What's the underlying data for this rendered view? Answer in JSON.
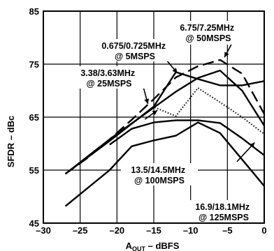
{
  "chart_data": {
    "type": "line",
    "title": "",
    "xlabel": "A_OUT – dBFS",
    "xlabel_parts": {
      "main": "A",
      "sub": "OUT",
      "rest": " – dBFS"
    },
    "ylabel": "SFDR – dBc",
    "xlim": [
      -30,
      0
    ],
    "ylim": [
      45,
      85
    ],
    "xticks": [
      -30,
      -25,
      -20,
      -15,
      -10,
      -5,
      0
    ],
    "xtick_labels": [
      "–30",
      "–25",
      "–20",
      "–15",
      "–10",
      "–5",
      "0"
    ],
    "yticks": [
      45,
      55,
      65,
      75,
      85
    ],
    "ytick_labels": [
      "45",
      "55",
      "65",
      "75",
      "85"
    ],
    "grid": true,
    "legend": "none (inline annotations)",
    "series": [
      {
        "name": "0.675/0.725MHz @ 5MSPS",
        "style": "dashed",
        "color": "#000000",
        "x": [
          -27,
          -24,
          -21,
          -18,
          -15,
          -12,
          -9,
          -6,
          -3,
          0
        ],
        "y": [
          54.3,
          57.3,
          60.8,
          64.5,
          68.4,
          72.5,
          74.6,
          75.8,
          73.2,
          65.6
        ]
      },
      {
        "name": "6.75/7.25MHz @ 50MSPS",
        "style": "solid",
        "color": "#000000",
        "x": [
          -27,
          -21,
          -15,
          -12,
          -9,
          -6,
          -3,
          0
        ],
        "y": [
          54.3,
          60.5,
          67.0,
          73.5,
          72.2,
          71.0,
          71.0,
          71.8
        ]
      },
      {
        "name": "3.38/3.63MHz @ 25MSPS",
        "style": "solid",
        "color": "#000000",
        "x": [
          -27,
          -21,
          -15,
          -12,
          -9,
          -6,
          -3,
          0
        ],
        "y": [
          54.3,
          60.8,
          66.8,
          69.8,
          72.4,
          73.8,
          70.0,
          63.4
        ]
      },
      {
        "name": "13.5/14.5MHz @ 100MSPS",
        "style": "dotted",
        "color": "#000000",
        "x": [
          -27,
          -21,
          -15,
          -12,
          -9,
          -6,
          -3,
          0
        ],
        "y": [
          54.3,
          60.8,
          66.9,
          65.2,
          70.5,
          67.8,
          65.0,
          61.8
        ]
      },
      {
        "name": "16.9/18.1MHz @ 125MSPS",
        "style": "solid",
        "color": "#000000",
        "x": [
          -27,
          -21,
          -18,
          -15,
          -12,
          -9,
          -6,
          -3,
          0
        ],
        "y": [
          48.2,
          55.0,
          59.5,
          60.6,
          61.5,
          64.0,
          62.0,
          57.0,
          52.0
        ]
      },
      {
        "name": "unlabeled curve",
        "style": "solid",
        "color": "#000000",
        "x": [
          -21,
          -18,
          -15,
          -12,
          -9,
          -6,
          -3,
          0
        ],
        "y": [
          59.8,
          62.8,
          64.0,
          64.4,
          64.4,
          63.9,
          61.0,
          57.8
        ]
      }
    ],
    "annotations": [
      {
        "lines": [
          "6.75/7.25MHz",
          "@ 50MSPS"
        ]
      },
      {
        "lines": [
          "0.675/0.725MHz",
          "@ 5MSPS"
        ]
      },
      {
        "lines": [
          "3.38/3.63MHz",
          "@ 25MSPS"
        ]
      },
      {
        "lines": [
          "13.5/14.5MHz",
          "@ 100MSPS"
        ]
      },
      {
        "lines": [
          "16.9/18.1MHz",
          "@ 125MSPS"
        ]
      }
    ]
  }
}
